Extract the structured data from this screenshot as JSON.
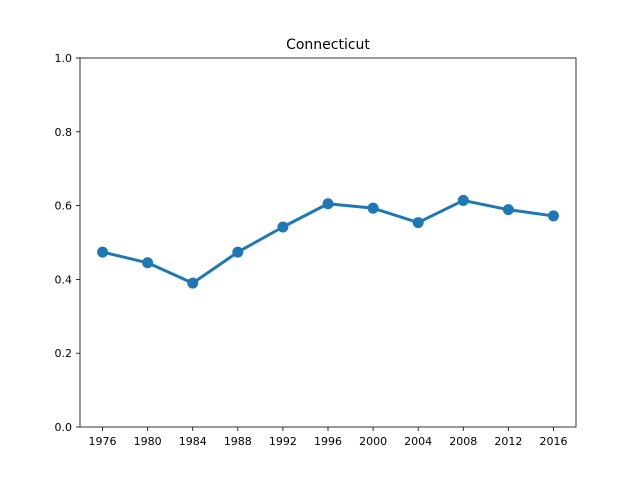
{
  "chart_data": {
    "type": "line",
    "title": "Connecticut",
    "xlabel": "",
    "ylabel": "",
    "categories": [
      "1976",
      "1980",
      "1984",
      "1988",
      "1992",
      "1996",
      "2000",
      "2004",
      "2008",
      "2012",
      "2016"
    ],
    "series": [
      {
        "values": [
          0.474,
          0.445,
          0.39,
          0.474,
          0.542,
          0.605,
          0.593,
          0.554,
          0.614,
          0.589,
          0.572
        ]
      }
    ],
    "ylim": [
      0.0,
      1.0
    ],
    "yticks": [
      "0.0",
      "0.2",
      "0.4",
      "0.6",
      "0.8",
      "1.0"
    ],
    "grid": false,
    "legend": "none",
    "colors": {
      "line": "#1f77b4",
      "marker": "#1f77b4",
      "axis": "#000000"
    }
  }
}
